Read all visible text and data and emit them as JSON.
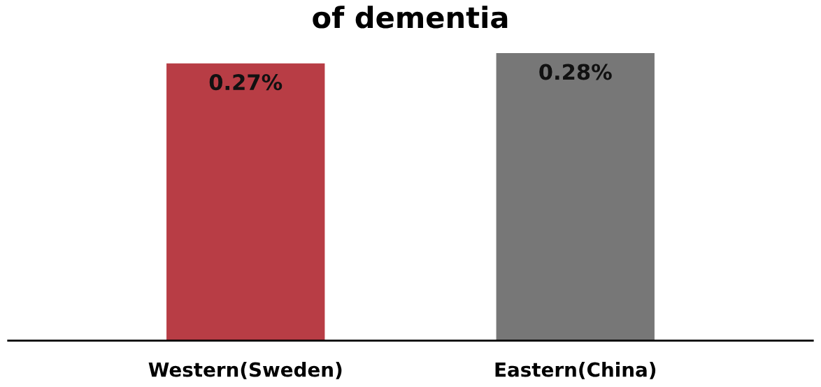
{
  "chart_data": {
    "type": "bar",
    "title": "of dementia",
    "categories": [
      "Western(Sweden)",
      "Eastern(China)"
    ],
    "values": [
      0.27,
      0.28
    ],
    "value_labels": [
      "0.27%",
      "0.28%"
    ],
    "colors": [
      "#b83d45",
      "#777777"
    ],
    "tick_labels": "x"
  }
}
